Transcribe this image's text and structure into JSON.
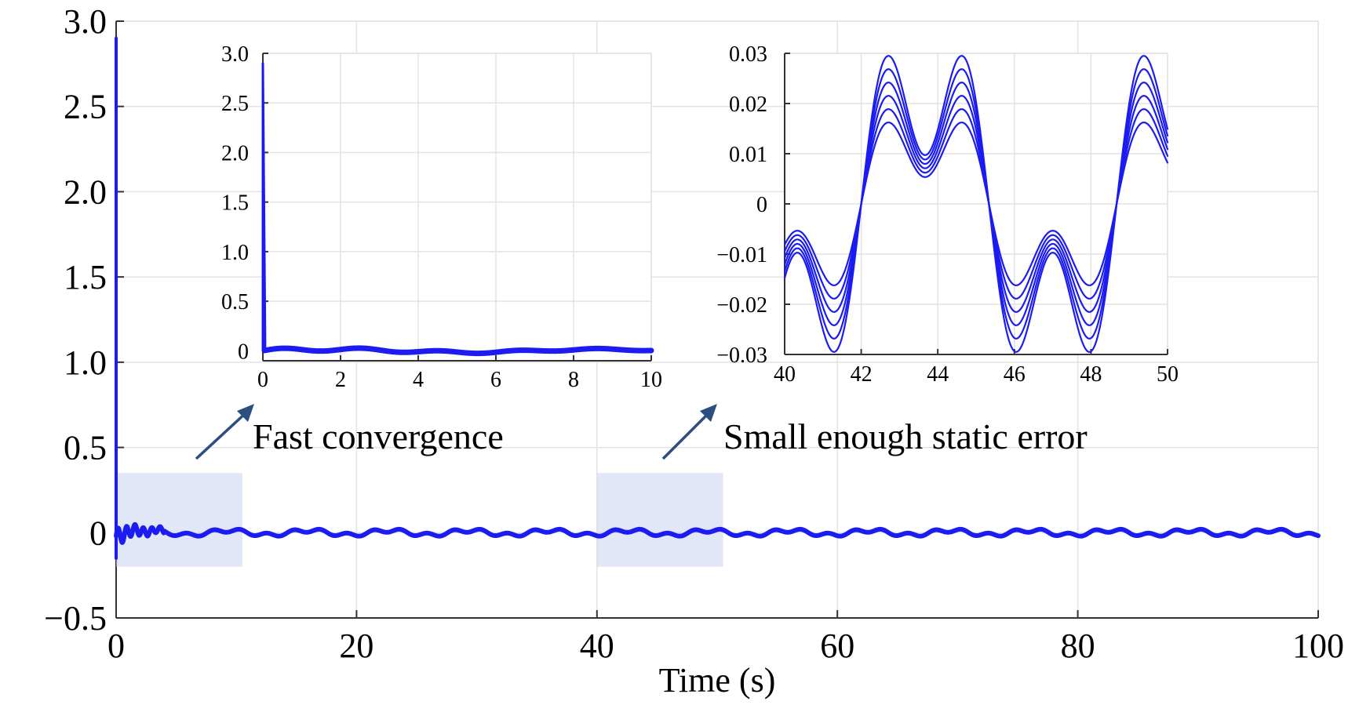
{
  "chart_data": [
    {
      "id": "main",
      "type": "line",
      "title": "",
      "xlabel": "Time (s)",
      "ylabel": "",
      "xlim": [
        0,
        100
      ],
      "ylim": [
        -0.5,
        3.0
      ],
      "xticks": [
        0,
        20,
        40,
        60,
        80,
        100
      ],
      "xtick_labels": [
        "0",
        "20",
        "40",
        "60",
        "80",
        "100"
      ],
      "yticks": [
        -0.5,
        0,
        0.5,
        1.0,
        1.5,
        2.0,
        2.5,
        3.0
      ],
      "ytick_labels": [
        "−0.5",
        "0",
        "0.5",
        "1.0",
        "1.5",
        "2.0",
        "2.5",
        "3.0"
      ],
      "grid": true,
      "initial_spike": {
        "t": 0,
        "peak": 2.9,
        "min": -0.15
      },
      "steady_state": {
        "amplitude": 0.025,
        "period": 6.67,
        "band": 0.006
      },
      "highlight_regions": [
        {
          "x": [
            0,
            10.5
          ],
          "y": [
            -0.2,
            0.35
          ]
        },
        {
          "x": [
            40,
            50.5
          ],
          "y": [
            -0.2,
            0.35
          ]
        }
      ],
      "series_color": "#1c1cf0"
    },
    {
      "id": "inset-left",
      "type": "line",
      "xlim": [
        0,
        10
      ],
      "ylim": [
        -0.1,
        3.0
      ],
      "xticks": [
        0,
        2,
        4,
        6,
        8,
        10
      ],
      "xtick_labels": [
        "0",
        "2",
        "4",
        "6",
        "8",
        "10"
      ],
      "yticks": [
        0,
        0.5,
        1.0,
        1.5,
        2.0,
        2.5,
        3.0
      ],
      "ytick_labels": [
        "0",
        "0.5",
        "1.0",
        "1.5",
        "2.0",
        "2.5",
        "3.0"
      ],
      "grid": true,
      "initial_spike": {
        "t": 0,
        "peak": 2.9
      }
    },
    {
      "id": "inset-right",
      "type": "line",
      "xlim": [
        40,
        50
      ],
      "ylim": [
        -0.03,
        0.03
      ],
      "xticks": [
        40,
        42,
        44,
        46,
        48,
        50
      ],
      "xtick_labels": [
        "40",
        "42",
        "44",
        "46",
        "48",
        "50"
      ],
      "yticks": [
        -0.03,
        -0.02,
        -0.01,
        0,
        0.01,
        0.02,
        0.03
      ],
      "ytick_labels": [
        "−0.03",
        "−0.02",
        "−0.01",
        "0",
        "0.01",
        "0.02",
        "0.03"
      ],
      "grid": true,
      "series_scales": [
        0.55,
        0.64,
        0.73,
        0.82,
        0.91,
        1.0
      ],
      "steady_state": {
        "amplitude": 0.0295,
        "period": 6.67
      }
    }
  ],
  "annotations": {
    "fast": "Fast convergence",
    "static": "Small enough static error"
  }
}
